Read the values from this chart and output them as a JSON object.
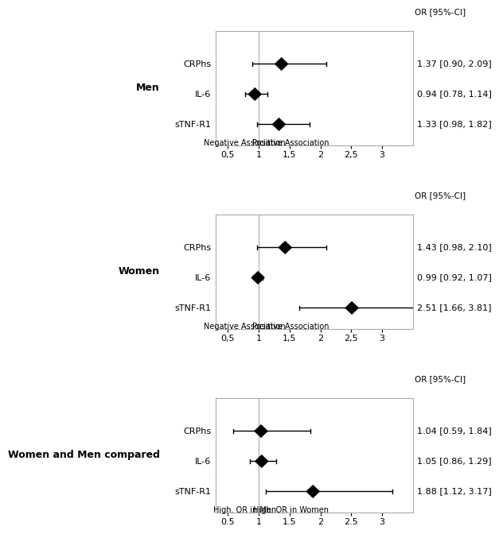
{
  "panels": [
    {
      "group_label": "Men",
      "or_label": "OR [95%-CI]",
      "rows": [
        {
          "label": "CRPhs",
          "or": 1.37,
          "ci_lo": 0.9,
          "ci_hi": 2.09,
          "text": "1.37 [0.90, 2.09]"
        },
        {
          "label": "IL-6",
          "or": 0.94,
          "ci_lo": 0.78,
          "ci_hi": 1.14,
          "text": "0.94 [0.78, 1.14]"
        },
        {
          "label": "sTNF-R1",
          "or": 1.33,
          "ci_lo": 0.98,
          "ci_hi": 1.82,
          "text": "1.33 [0.98, 1.82]"
        }
      ],
      "xticklabels": [
        "0,5",
        "1",
        "1,5",
        "2",
        "2,5",
        "3"
      ],
      "xticks": [
        0.5,
        1.0,
        1.5,
        2.0,
        2.5,
        3.0
      ],
      "xlim": [
        0.3,
        3.5
      ],
      "left_label": "Negative Association",
      "right_label": "Positive Association"
    },
    {
      "group_label": "Women",
      "or_label": "OR [95%-CI]",
      "rows": [
        {
          "label": "CRPhs",
          "or": 1.43,
          "ci_lo": 0.98,
          "ci_hi": 2.1,
          "text": "1.43 [0.98, 2.10]"
        },
        {
          "label": "IL-6",
          "or": 0.99,
          "ci_lo": 0.92,
          "ci_hi": 1.07,
          "text": "0.99 [0.92, 1.07]"
        },
        {
          "label": "sTNF-R1",
          "or": 2.51,
          "ci_lo": 1.66,
          "ci_hi": 3.81,
          "text": "2.51 [1.66, 3.81]"
        }
      ],
      "xticklabels": [
        "0,5",
        "1",
        "1,5",
        "2",
        "2,5",
        "3"
      ],
      "xticks": [
        0.5,
        1.0,
        1.5,
        2.0,
        2.5,
        3.0
      ],
      "xlim": [
        0.3,
        3.5
      ],
      "left_label": "Negative Association",
      "right_label": "Positive Association"
    },
    {
      "group_label": "Women and Men compared",
      "or_label": "OR [95%-CI]",
      "rows": [
        {
          "label": "CRPhs",
          "or": 1.04,
          "ci_lo": 0.59,
          "ci_hi": 1.84,
          "text": "1.04 [0.59, 1.84]"
        },
        {
          "label": "IL-6",
          "or": 1.05,
          "ci_lo": 0.86,
          "ci_hi": 1.29,
          "text": "1.05 [0.86, 1.29]"
        },
        {
          "label": "sTNF-R1",
          "or": 1.88,
          "ci_lo": 1.12,
          "ci_hi": 3.17,
          "text": "1.88 [1.12, 3.17]"
        }
      ],
      "xticklabels": [
        "0.5",
        "1",
        "1.5",
        "2",
        "2.5",
        "3"
      ],
      "xticks": [
        0.5,
        1.0,
        1.5,
        2.0,
        2.5,
        3.0
      ],
      "xlim": [
        0.3,
        3.5
      ],
      "left_label": "High. OR in Men",
      "right_label": "High. OR in Women"
    }
  ],
  "bg_color": "#ffffff",
  "box_color": "#aaaaaa",
  "text_color": "#000000",
  "line_color": "#000000",
  "ref_line_color": "#aaaaaa",
  "font_family": "DejaVu Sans"
}
